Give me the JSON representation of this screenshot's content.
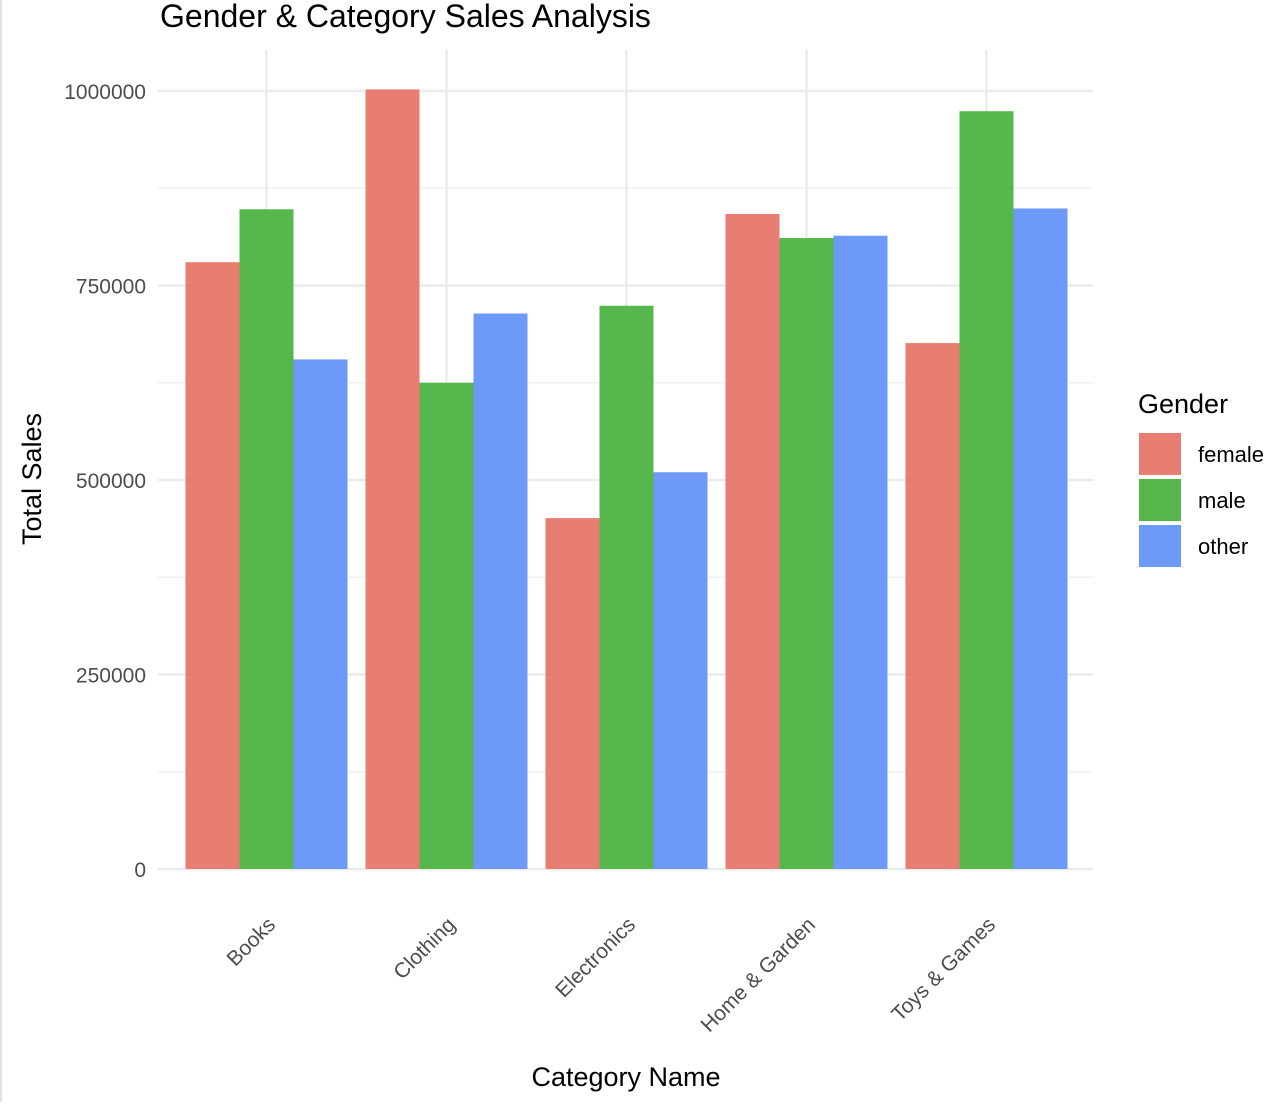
{
  "chart_data": {
    "type": "bar",
    "title": "Gender & Category Sales Analysis",
    "xlabel": "Category Name",
    "ylabel": "Total Sales",
    "categories": [
      "Books",
      "Clothing",
      "Electronics",
      "Home & Garden",
      "Toys & Games"
    ],
    "series": [
      {
        "name": "female",
        "color": "#E87D72",
        "values": [
          780000,
          1002000,
          451000,
          842000,
          676000
        ]
      },
      {
        "name": "male",
        "color": "#56B74C",
        "values": [
          848000,
          625000,
          724000,
          811000,
          974000
        ]
      },
      {
        "name": "other",
        "color": "#6D9AF8",
        "values": [
          655000,
          714000,
          510000,
          814000,
          849000
        ]
      }
    ],
    "ylim": [
      0,
      1051000
    ],
    "yticks": [
      0,
      250000,
      500000,
      750000,
      1000000
    ],
    "ytick_labels": [
      "0",
      "250000",
      "500000",
      "750000",
      "1000000"
    ],
    "grid": true,
    "legend": {
      "title": "Gender",
      "position": "right"
    }
  }
}
